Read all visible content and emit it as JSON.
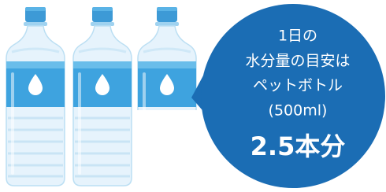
{
  "bubble": {
    "lines": [
      "1日の",
      "水分量の目安は",
      "ペットボトル",
      "(500ml)"
    ],
    "highlight": "2.5本分"
  }
}
